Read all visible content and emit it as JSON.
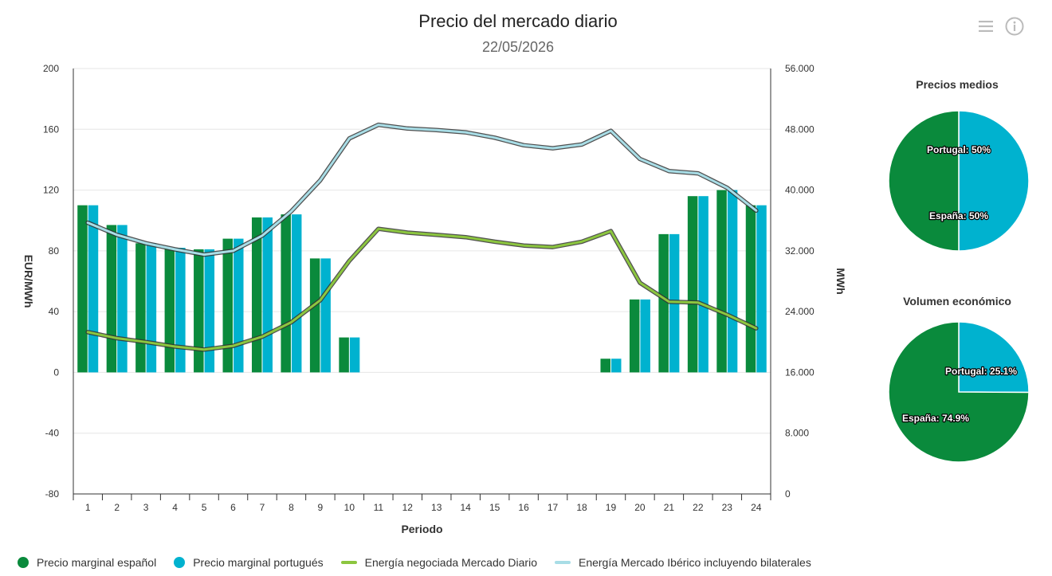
{
  "header": {
    "title": "Precio del mercado diario",
    "date": "22/05/2026",
    "menu_icon": "hamburger-menu-icon",
    "info_icon": "info-icon"
  },
  "colors": {
    "spain": "#0a8a3c",
    "portugal": "#00b2cf",
    "energy_daily": "#8cc63f",
    "energy_iberian": "#a8dde6",
    "grid": "#e6e6e6",
    "axis": "#333333"
  },
  "chart_data": [
    {
      "type": "bar",
      "title": "Precio del mercado diario",
      "subtitle": "22/05/2026",
      "xlabel": "Periodo",
      "ylabel": "EUR/MWh",
      "ylabel_right": "MWh",
      "categories": [
        "1",
        "2",
        "3",
        "4",
        "5",
        "6",
        "7",
        "8",
        "9",
        "10",
        "11",
        "12",
        "13",
        "14",
        "15",
        "16",
        "17",
        "18",
        "19",
        "20",
        "21",
        "22",
        "23",
        "24"
      ],
      "ylim": [
        -80,
        200
      ],
      "yticks": [
        "200",
        "160",
        "120",
        "80",
        "40",
        "0",
        "-40",
        "-80"
      ],
      "ylim_right": [
        0,
        56000
      ],
      "yticks_right": [
        "56.000",
        "48.000",
        "40.000",
        "32.000",
        "24.000",
        "16.000",
        "8.000",
        "0"
      ],
      "grid": true,
      "legend_position": "bottom",
      "series": [
        {
          "name": "Precio marginal español",
          "kind": "bar",
          "values": [
            110,
            97,
            85,
            82,
            81,
            88,
            102,
            104,
            75,
            23,
            0,
            0,
            0,
            0,
            0,
            0,
            0,
            0,
            9,
            48,
            91,
            116,
            120,
            110
          ]
        },
        {
          "name": "Precio marginal portugués",
          "kind": "bar",
          "values": [
            110,
            97,
            85,
            82,
            81,
            88,
            102,
            104,
            75,
            23,
            0,
            0,
            0,
            0,
            0,
            0,
            0,
            0,
            9,
            48,
            91,
            116,
            120,
            110
          ]
        },
        {
          "name": "Energía negociada Mercado Diario",
          "kind": "line",
          "axis": "right",
          "values": [
            21300,
            20500,
            20000,
            19400,
            19000,
            19500,
            20700,
            22600,
            25500,
            30700,
            34900,
            34400,
            34100,
            33800,
            33200,
            32700,
            32500,
            33200,
            34600,
            27800,
            25300,
            25200,
            23600,
            21800
          ]
        },
        {
          "name": "Energía Mercado Ibérico incluyendo bilaterales",
          "kind": "line",
          "axis": "right",
          "values": [
            35700,
            34100,
            33000,
            32200,
            31500,
            32000,
            34000,
            37200,
            41300,
            46800,
            48600,
            48100,
            47900,
            47600,
            46900,
            45900,
            45500,
            46000,
            47800,
            44100,
            42500,
            42200,
            40300,
            37300
          ]
        }
      ]
    },
    {
      "type": "pie",
      "title": "Precios medios",
      "slices": [
        {
          "label": "Portugal",
          "value": 50,
          "text": "Portugal: 50%"
        },
        {
          "label": "España",
          "value": 50,
          "text": "España: 50%"
        }
      ]
    },
    {
      "type": "pie",
      "title": "Volumen económico",
      "slices": [
        {
          "label": "Portugal",
          "value": 25.1,
          "text": "Portugal: 25.1%"
        },
        {
          "label": "España",
          "value": 74.9,
          "text": "España: 74.9%"
        }
      ]
    }
  ]
}
